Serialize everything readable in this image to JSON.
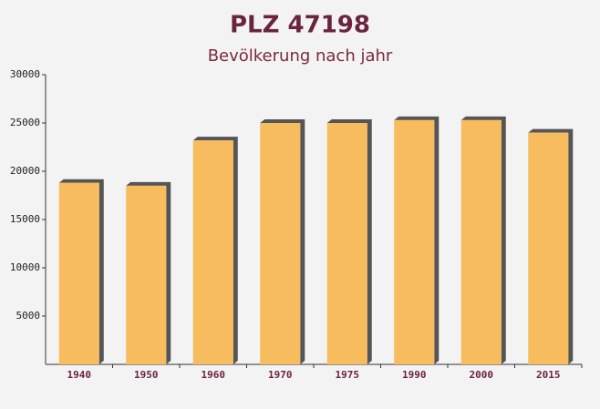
{
  "chart_data": {
    "type": "bar",
    "title": "PLZ 47198",
    "subtitle": "Bevölkerung nach jahr",
    "categories": [
      "1940",
      "1950",
      "1960",
      "1970",
      "1975",
      "1990",
      "2000",
      "2015"
    ],
    "values": [
      18800,
      18500,
      23200,
      25000,
      25000,
      25300,
      25300,
      24000
    ],
    "color": "#f7bc5e",
    "ylim": [
      0,
      30000
    ],
    "yticks": [
      5000,
      10000,
      15000,
      20000,
      25000,
      30000
    ],
    "grid": false
  }
}
